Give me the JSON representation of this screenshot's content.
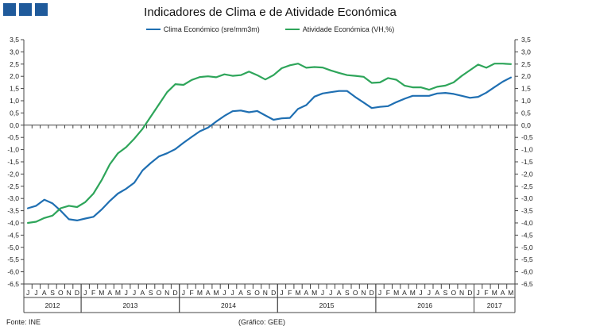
{
  "header": {
    "title": "Indicadores de Clima e de Atividade Económica",
    "logo_icon": "institution-logo-squares"
  },
  "footer": {
    "source": "Fonte: INE",
    "credit": "(Gráfico: GEE)"
  },
  "chart_data": {
    "type": "line",
    "title": "Indicadores de Clima e de Atividade Económica",
    "xlabel": "",
    "ylabel": "",
    "ylim": [
      -6.5,
      3.5
    ],
    "yticks": [
      "3,5",
      "3,0",
      "2,5",
      "2,0",
      "1,5",
      "1,0",
      "0,5",
      "0,0",
      "-0,5",
      "-1,0",
      "-1,5",
      "-2,0",
      "-2,5",
      "-3,0",
      "-3,5",
      "-4,0",
      "-4,5",
      "-5,0",
      "-5,5",
      "-6,0",
      "-6,5"
    ],
    "ytick_values": [
      3.5,
      3.0,
      2.5,
      2.0,
      1.5,
      1.0,
      0.5,
      0.0,
      -0.5,
      -1.0,
      -1.5,
      -2.0,
      -2.5,
      -3.0,
      -3.5,
      -4.0,
      -4.5,
      -5.0,
      -5.5,
      -6.0,
      -6.5
    ],
    "grid": false,
    "legend_position": "top-center",
    "x": [
      "J",
      "J",
      "A",
      "S",
      "O",
      "N",
      "D",
      "J",
      "F",
      "M",
      "A",
      "M",
      "J",
      "J",
      "A",
      "S",
      "O",
      "N",
      "D",
      "J",
      "F",
      "M",
      "A",
      "M",
      "J",
      "J",
      "A",
      "S",
      "O",
      "N",
      "D",
      "J",
      "F",
      "M",
      "A",
      "M",
      "J",
      "J",
      "A",
      "S",
      "O",
      "N",
      "D",
      "J",
      "F",
      "M",
      "A",
      "M",
      "J",
      "J",
      "A",
      "S",
      "O",
      "N",
      "D",
      "J",
      "F",
      "M",
      "A",
      "M"
    ],
    "years": [
      {
        "label": "2012",
        "start": 0,
        "end": 6
      },
      {
        "label": "2013",
        "start": 7,
        "end": 18
      },
      {
        "label": "2014",
        "start": 19,
        "end": 30
      },
      {
        "label": "2015",
        "start": 31,
        "end": 42
      },
      {
        "label": "2016",
        "start": 43,
        "end": 54
      },
      {
        "label": "2017",
        "start": 55,
        "end": 59
      }
    ],
    "series": [
      {
        "name": "Clima Económico (sre/mm3m)",
        "color": "#1f6fb2",
        "values": [
          -3.4,
          -3.3,
          -3.05,
          -3.2,
          -3.5,
          -3.85,
          -3.9,
          -3.82,
          -3.75,
          -3.45,
          -3.1,
          -2.8,
          -2.6,
          -2.35,
          -1.85,
          -1.55,
          -1.28,
          -1.15,
          -0.98,
          -0.72,
          -0.48,
          -0.25,
          -0.1,
          0.15,
          0.38,
          0.57,
          0.6,
          0.53,
          0.58,
          0.4,
          0.22,
          0.28,
          0.3,
          0.67,
          0.82,
          1.17,
          1.3,
          1.35,
          1.4,
          1.4,
          1.15,
          0.93,
          0.7,
          0.75,
          0.78,
          0.94,
          1.08,
          1.2,
          1.2,
          1.2,
          1.3,
          1.32,
          1.28,
          1.2,
          1.12,
          1.16,
          1.33,
          1.56,
          1.78,
          1.95
        ]
      },
      {
        "name": "Atividade Económica (VH,%)",
        "color": "#2ea55a",
        "values": [
          -4.0,
          -3.95,
          -3.8,
          -3.7,
          -3.4,
          -3.3,
          -3.35,
          -3.15,
          -2.8,
          -2.25,
          -1.6,
          -1.15,
          -0.9,
          -0.55,
          -0.15,
          0.35,
          0.85,
          1.35,
          1.68,
          1.65,
          1.85,
          1.97,
          2.0,
          1.96,
          2.08,
          2.02,
          2.05,
          2.19,
          2.05,
          1.87,
          2.05,
          2.33,
          2.45,
          2.52,
          2.35,
          2.38,
          2.36,
          2.24,
          2.14,
          2.05,
          2.02,
          1.98,
          1.73,
          1.75,
          1.93,
          1.86,
          1.62,
          1.55,
          1.55,
          1.45,
          1.57,
          1.62,
          1.75,
          2.02,
          2.25,
          2.48,
          2.35,
          2.52,
          2.52,
          2.5
        ]
      }
    ]
  }
}
